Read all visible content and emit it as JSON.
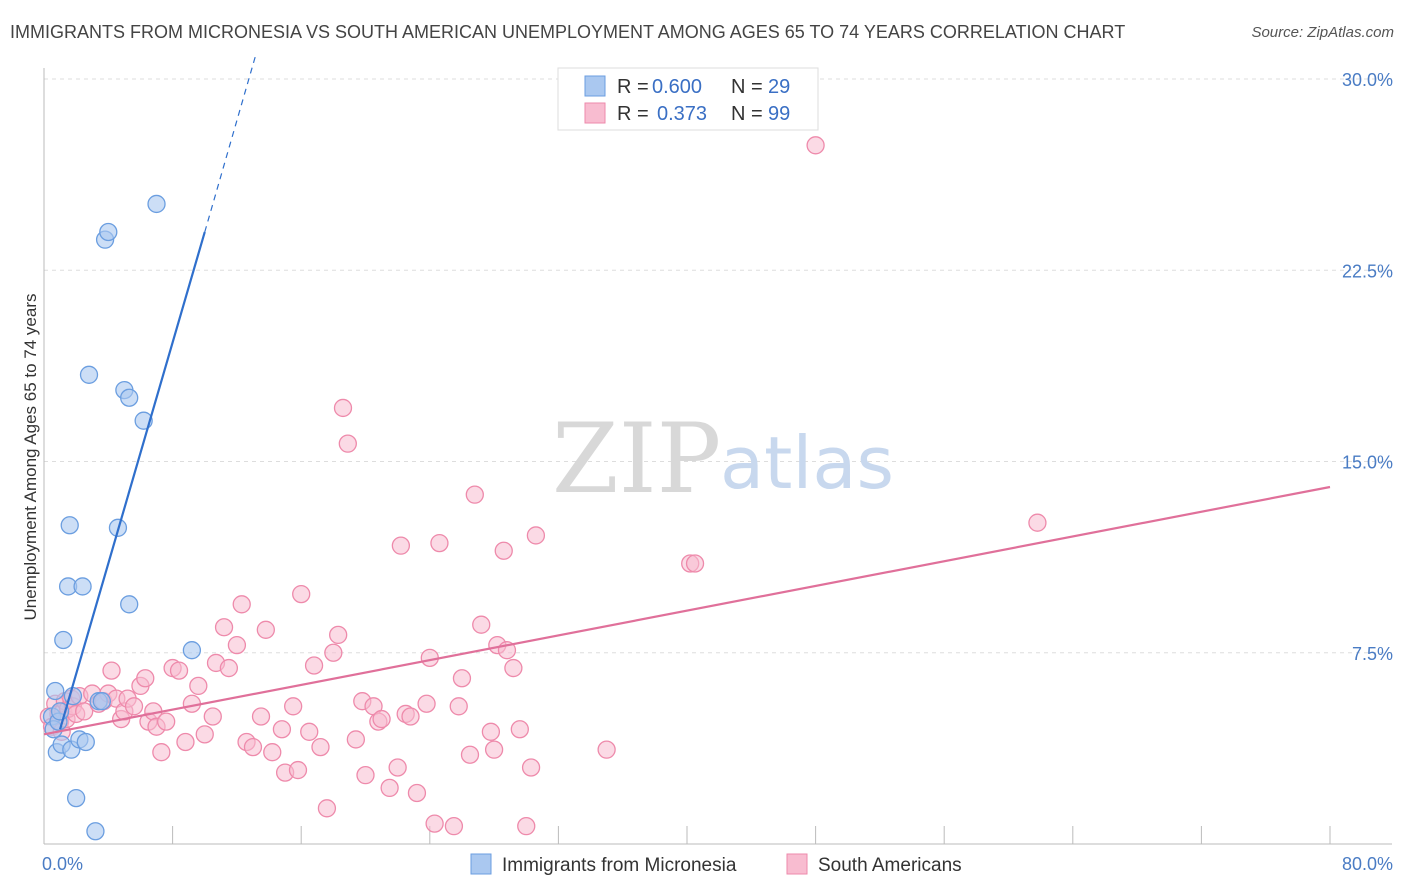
{
  "chart_data": {
    "type": "scatter",
    "title": "IMMIGRANTS FROM MICRONESIA VS SOUTH AMERICAN UNEMPLOYMENT AMONG AGES 65 TO 74 YEARS CORRELATION CHART",
    "source": "Source: ZipAtlas.com",
    "ylabel": "Unemployment Among Ages 65 to 74 years",
    "xlim": [
      0,
      80
    ],
    "ylim": [
      0,
      30
    ],
    "x_tick_labels": [
      "0.0%",
      "80.0%"
    ],
    "y_ticks": [
      7.5,
      15.0,
      22.5,
      30.0
    ],
    "y_tick_labels": [
      "7.5%",
      "15.0%",
      "22.5%",
      "30.0%"
    ],
    "watermark": {
      "zip": "ZIP",
      "atlas": "atlas"
    },
    "colors": {
      "micronesia_fill": "#aac8f0",
      "micronesia_stroke": "#6b9ee0",
      "micronesia_line": "#2f6fcc",
      "south_fill": "#f8bcd0",
      "south_stroke": "#ee8aab",
      "south_line": "#e0709a",
      "grid": "#dddddd",
      "axis": "#bbbbbb"
    },
    "legend": [
      {
        "r_label": "R =",
        "r_value": "0.600",
        "n_label": "N =",
        "n_value": "29"
      },
      {
        "r_label": "R =",
        "r_value": "0.373",
        "n_label": "N =",
        "n_value": "99"
      }
    ],
    "series": [
      {
        "name": "Immigrants from Micronesia",
        "trend": {
          "x0": 1.0,
          "y0": 4.5,
          "x1": 10.0,
          "y1": 24.0,
          "dash_x1": 13.2,
          "dash_y1": 31.0
        },
        "points": [
          [
            0.5,
            5.0
          ],
          [
            0.6,
            4.5
          ],
          [
            0.7,
            6.0
          ],
          [
            0.8,
            3.6
          ],
          [
            0.9,
            4.8
          ],
          [
            1.0,
            5.2
          ],
          [
            1.1,
            3.9
          ],
          [
            1.2,
            8.0
          ],
          [
            1.5,
            10.1
          ],
          [
            1.7,
            3.7
          ],
          [
            1.6,
            12.5
          ],
          [
            1.8,
            5.8
          ],
          [
            2.0,
            1.8
          ],
          [
            2.2,
            4.1
          ],
          [
            2.4,
            10.1
          ],
          [
            2.6,
            4.0
          ],
          [
            2.8,
            18.4
          ],
          [
            3.2,
            0.5
          ],
          [
            3.4,
            5.6
          ],
          [
            3.6,
            5.6
          ],
          [
            3.8,
            23.7
          ],
          [
            4.0,
            24.0
          ],
          [
            4.6,
            12.4
          ],
          [
            5.0,
            17.8
          ],
          [
            5.3,
            17.5
          ],
          [
            5.3,
            9.4
          ],
          [
            6.2,
            16.6
          ],
          [
            7.0,
            25.1
          ],
          [
            9.2,
            7.6
          ]
        ]
      },
      {
        "name": "South Americans",
        "trend": {
          "x0": 0.0,
          "y0": 4.3,
          "x1": 80.0,
          "y1": 14.0
        },
        "points": [
          [
            0.3,
            5.0
          ],
          [
            0.5,
            4.6
          ],
          [
            0.7,
            5.5
          ],
          [
            0.9,
            5.1
          ],
          [
            1.0,
            4.8
          ],
          [
            1.1,
            4.4
          ],
          [
            1.2,
            5.2
          ],
          [
            1.3,
            5.6
          ],
          [
            1.4,
            4.9
          ],
          [
            1.5,
            5.3
          ],
          [
            1.7,
            5.7
          ],
          [
            1.8,
            5.4
          ],
          [
            2.0,
            5.1
          ],
          [
            2.2,
            5.8
          ],
          [
            2.5,
            5.2
          ],
          [
            3.0,
            5.9
          ],
          [
            3.4,
            5.5
          ],
          [
            3.7,
            5.6
          ],
          [
            4.0,
            5.9
          ],
          [
            4.2,
            6.8
          ],
          [
            4.5,
            5.7
          ],
          [
            4.8,
            4.9
          ],
          [
            5.0,
            5.2
          ],
          [
            5.2,
            5.7
          ],
          [
            5.6,
            5.4
          ],
          [
            6.0,
            6.2
          ],
          [
            6.3,
            6.5
          ],
          [
            6.5,
            4.8
          ],
          [
            6.8,
            5.2
          ],
          [
            7.0,
            4.6
          ],
          [
            7.3,
            3.6
          ],
          [
            7.6,
            4.8
          ],
          [
            8.0,
            6.9
          ],
          [
            8.4,
            6.8
          ],
          [
            8.8,
            4.0
          ],
          [
            9.2,
            5.5
          ],
          [
            9.6,
            6.2
          ],
          [
            10.0,
            4.3
          ],
          [
            10.5,
            5.0
          ],
          [
            10.7,
            7.1
          ],
          [
            11.2,
            8.5
          ],
          [
            11.5,
            6.9
          ],
          [
            12.0,
            7.8
          ],
          [
            12.3,
            9.4
          ],
          [
            12.6,
            4.0
          ],
          [
            13.0,
            3.8
          ],
          [
            13.5,
            5.0
          ],
          [
            13.8,
            8.4
          ],
          [
            14.2,
            3.6
          ],
          [
            14.8,
            4.5
          ],
          [
            15.0,
            2.8
          ],
          [
            15.5,
            5.4
          ],
          [
            15.8,
            2.9
          ],
          [
            16.0,
            9.8
          ],
          [
            16.5,
            4.4
          ],
          [
            16.8,
            7.0
          ],
          [
            17.2,
            3.8
          ],
          [
            17.6,
            1.4
          ],
          [
            18.0,
            7.5
          ],
          [
            18.3,
            8.2
          ],
          [
            18.6,
            17.1
          ],
          [
            18.9,
            15.7
          ],
          [
            19.4,
            4.1
          ],
          [
            19.8,
            5.6
          ],
          [
            20.0,
            2.7
          ],
          [
            20.5,
            5.4
          ],
          [
            20.8,
            4.8
          ],
          [
            21.0,
            4.9
          ],
          [
            21.5,
            2.2
          ],
          [
            22.0,
            3.0
          ],
          [
            22.2,
            11.7
          ],
          [
            22.5,
            5.1
          ],
          [
            22.8,
            5.0
          ],
          [
            23.2,
            2.0
          ],
          [
            23.8,
            5.5
          ],
          [
            24.0,
            7.3
          ],
          [
            24.3,
            0.8
          ],
          [
            24.6,
            11.8
          ],
          [
            25.5,
            0.7
          ],
          [
            25.8,
            5.4
          ],
          [
            26.0,
            6.5
          ],
          [
            26.5,
            3.5
          ],
          [
            26.8,
            13.7
          ],
          [
            27.2,
            8.6
          ],
          [
            27.8,
            4.4
          ],
          [
            28.0,
            3.7
          ],
          [
            28.2,
            7.8
          ],
          [
            28.6,
            11.5
          ],
          [
            28.8,
            7.6
          ],
          [
            29.2,
            6.9
          ],
          [
            29.6,
            4.5
          ],
          [
            30.0,
            0.7
          ],
          [
            30.3,
            3.0
          ],
          [
            30.6,
            12.1
          ],
          [
            35.0,
            3.7
          ],
          [
            40.2,
            11.0
          ],
          [
            40.5,
            11.0
          ],
          [
            48.0,
            27.4
          ],
          [
            61.8,
            12.6
          ]
        ]
      }
    ]
  }
}
